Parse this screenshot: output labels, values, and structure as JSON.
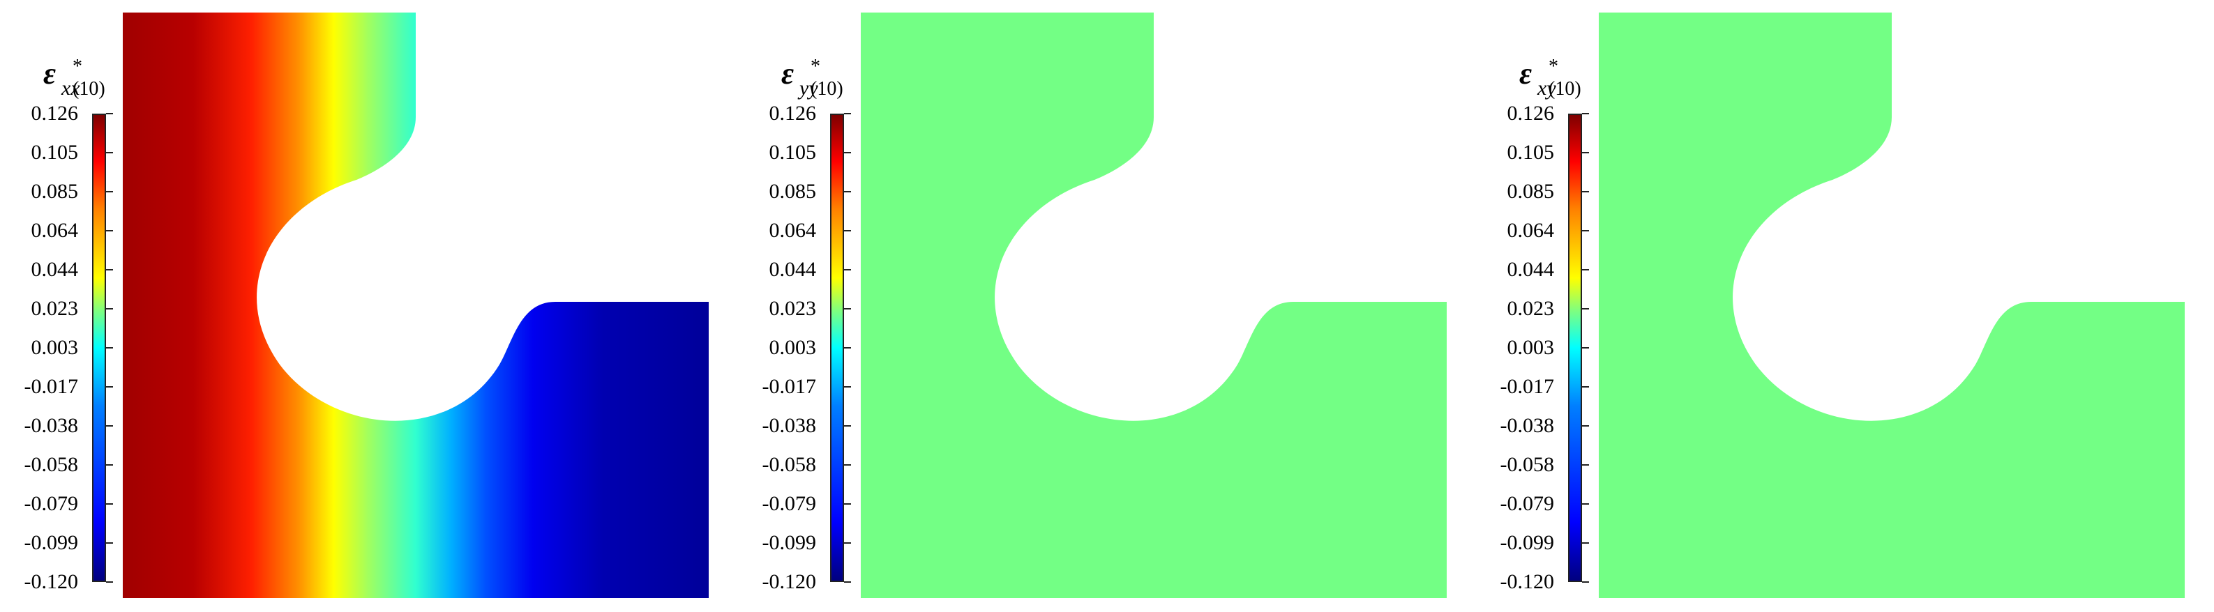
{
  "colorbar": {
    "ticks": [
      "0.126",
      "0.105",
      "0.085",
      "0.064",
      "0.044",
      "0.023",
      "0.003",
      "-0.017",
      "-0.038",
      "-0.058",
      "-0.079",
      "-0.099",
      "-0.120"
    ]
  },
  "panels": [
    {
      "label_main": "ε",
      "label_sub": "xx",
      "label_sup": "*(10)",
      "fill": "gradient"
    },
    {
      "label_main": "ε",
      "label_sub": "yy",
      "label_sup": "*(10)",
      "fill": "#73ff85"
    },
    {
      "label_main": "ε",
      "label_sub": "xy",
      "label_sup": "*(10)",
      "fill": "#73ff85"
    }
  ],
  "colors": {
    "uniform": "#73ff85",
    "background": "#ffffff"
  }
}
